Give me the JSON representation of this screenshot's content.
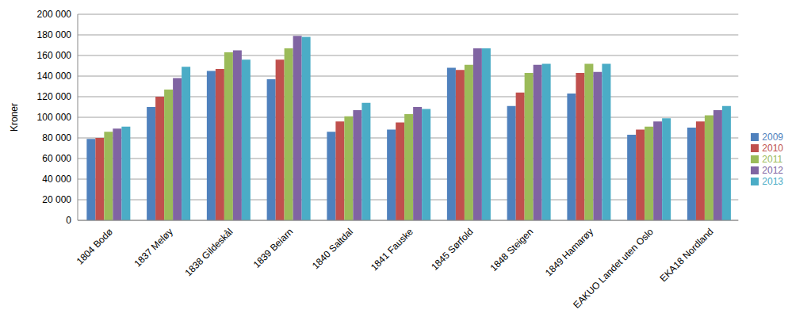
{
  "chart_data": {
    "type": "bar",
    "ylabel": "Kroner",
    "categories": [
      "1804 Bodø",
      "1837 Meløy",
      "1838 Gildeskål",
      "1839 Beiarn",
      "1840 Saltdal",
      "1841 Fauske",
      "1845 Sørfold",
      "1848 Steigen",
      "1849 Hamarøy",
      "EAKUO Landet uten Oslo",
      "EKA18 Nordland"
    ],
    "series": [
      {
        "name": "2009",
        "color": "#4f81bd",
        "values": [
          79000,
          110000,
          145000,
          137000,
          86000,
          88000,
          148000,
          111000,
          123000,
          83000,
          90000
        ]
      },
      {
        "name": "2010",
        "color": "#c0504d",
        "values": [
          80000,
          120000,
          147000,
          156000,
          96000,
          95000,
          146000,
          124000,
          143000,
          88000,
          96000
        ]
      },
      {
        "name": "2011",
        "color": "#9bbb59",
        "values": [
          86000,
          127000,
          163000,
          167000,
          101000,
          103000,
          151000,
          143000,
          152000,
          91000,
          102000
        ]
      },
      {
        "name": "2012",
        "color": "#8064a2",
        "values": [
          89000,
          138000,
          165000,
          179000,
          107000,
          110000,
          167000,
          151000,
          144000,
          96000,
          107000
        ]
      },
      {
        "name": "2013",
        "color": "#4bacc6",
        "values": [
          91000,
          149000,
          156000,
          178000,
          114000,
          108000,
          167000,
          152000,
          152000,
          99000,
          111000
        ]
      }
    ],
    "ylim": [
      0,
      200000
    ],
    "yticks": [
      0,
      {
        "value": 20000,
        "label": "20 000"
      },
      {
        "value": 40000,
        "label": "40 000"
      },
      {
        "value": 60000,
        "label": "60 000"
      },
      {
        "value": 80000,
        "label": "80 000"
      },
      {
        "value": 100000,
        "label": "100 000"
      },
      {
        "value": 120000,
        "label": "120 000"
      },
      {
        "value": 140000,
        "label": "140 000"
      },
      {
        "value": 160000,
        "label": "160 000"
      },
      {
        "value": 180000,
        "label": "180 000"
      },
      {
        "value": 200000,
        "label": "200 000"
      }
    ],
    "grid": true,
    "legend": "right"
  }
}
